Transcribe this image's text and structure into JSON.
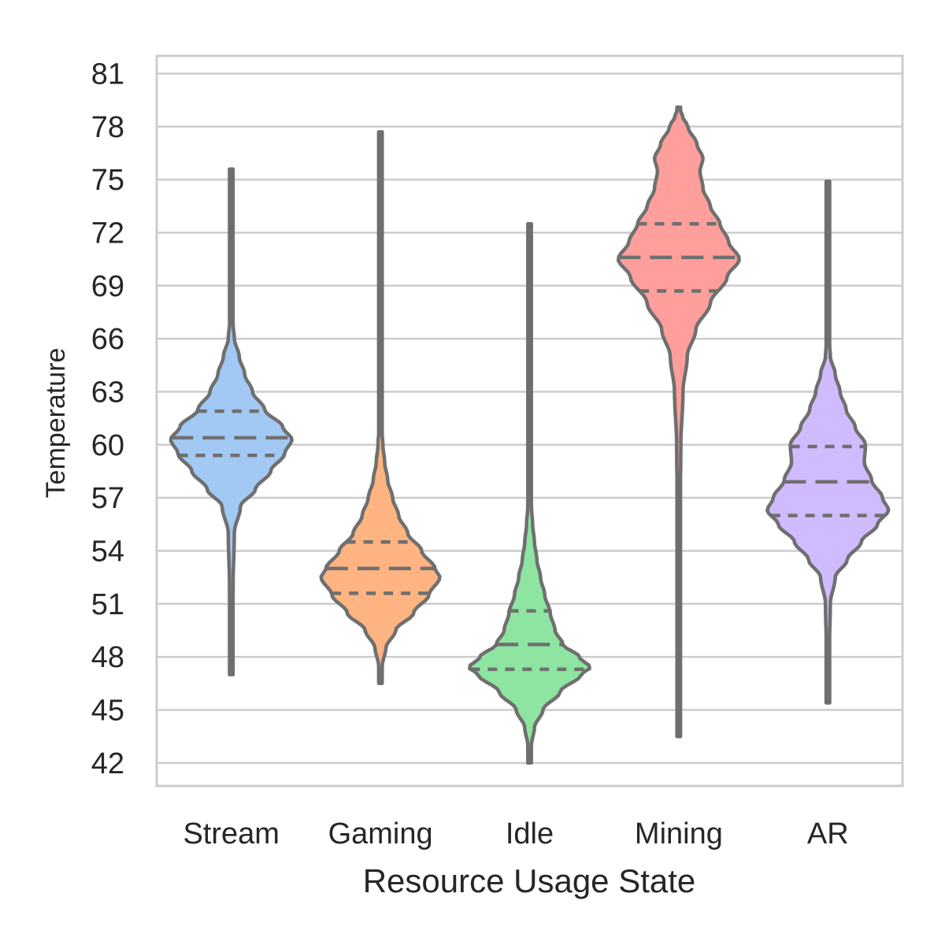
{
  "chart_data": {
    "type": "violin",
    "xlabel": "Resource Usage State",
    "ylabel": "Temperature",
    "ylim": [
      40.7,
      82
    ],
    "yticks": [
      42,
      45,
      48,
      51,
      54,
      57,
      60,
      63,
      66,
      69,
      72,
      75,
      78,
      81
    ],
    "grid": "horizontal",
    "inner": "quartile",
    "categories": [
      "Stream",
      "Gaming",
      "Idle",
      "Mining",
      "AR"
    ],
    "colors": [
      "#a1c9f4",
      "#ffb482",
      "#8de5a1",
      "#ff9f9b",
      "#d0bbff"
    ],
    "series": [
      {
        "category": "Stream",
        "min": 47.0,
        "q1": 59.4,
        "median": 60.4,
        "q3": 61.9,
        "max": 75.6,
        "density": [
          [
            47.0,
            0.01
          ],
          [
            49,
            0.02
          ],
          [
            52,
            0.03
          ],
          [
            55,
            0.05
          ],
          [
            56.5,
            0.15
          ],
          [
            57.5,
            0.4
          ],
          [
            58.5,
            0.65
          ],
          [
            59.5,
            0.88
          ],
          [
            60.3,
            1.0
          ],
          [
            61,
            0.85
          ],
          [
            62,
            0.55
          ],
          [
            63,
            0.35
          ],
          [
            64,
            0.22
          ],
          [
            65,
            0.13
          ],
          [
            66,
            0.05
          ],
          [
            67,
            0.025
          ],
          [
            69,
            0.015
          ],
          [
            72,
            0.01
          ],
          [
            75.6,
            0.01
          ]
        ]
      },
      {
        "category": "Gaming",
        "min": 46.5,
        "q1": 51.6,
        "median": 53.0,
        "q3": 54.5,
        "max": 77.7,
        "density": [
          [
            46.5,
            0.01
          ],
          [
            47.5,
            0.03
          ],
          [
            48.5,
            0.09
          ],
          [
            49.5,
            0.25
          ],
          [
            50.5,
            0.55
          ],
          [
            51.5,
            0.8
          ],
          [
            52.5,
            0.98
          ],
          [
            53,
            0.9
          ],
          [
            54,
            0.68
          ],
          [
            55,
            0.45
          ],
          [
            56,
            0.3
          ],
          [
            57,
            0.2
          ],
          [
            58,
            0.12
          ],
          [
            59,
            0.07
          ],
          [
            60,
            0.04
          ],
          [
            61,
            0.02
          ],
          [
            63,
            0.012
          ],
          [
            66,
            0.01
          ],
          [
            70,
            0.008
          ],
          [
            77.7,
            0.008
          ]
        ]
      },
      {
        "category": "Idle",
        "min": 42.0,
        "q1": 47.3,
        "median": 48.7,
        "q3": 50.6,
        "max": 72.5,
        "density": [
          [
            42.0,
            0.01
          ],
          [
            43,
            0.03
          ],
          [
            44,
            0.08
          ],
          [
            45,
            0.22
          ],
          [
            46,
            0.5
          ],
          [
            47,
            0.85
          ],
          [
            47.4,
            1.0
          ],
          [
            48,
            0.82
          ],
          [
            48.7,
            0.55
          ],
          [
            49.5,
            0.42
          ],
          [
            50.5,
            0.34
          ],
          [
            51.5,
            0.25
          ],
          [
            52.5,
            0.18
          ],
          [
            53.5,
            0.12
          ],
          [
            54.5,
            0.08
          ],
          [
            55.5,
            0.05
          ],
          [
            56.5,
            0.03
          ],
          [
            58,
            0.015
          ],
          [
            61,
            0.01
          ],
          [
            66,
            0.008
          ],
          [
            72.5,
            0.008
          ]
        ]
      },
      {
        "category": "Mining",
        "min": 43.5,
        "q1": 68.7,
        "median": 70.6,
        "q3": 72.5,
        "max": 79.1,
        "density": [
          [
            43.5,
            0.01
          ],
          [
            50,
            0.015
          ],
          [
            56,
            0.02
          ],
          [
            60,
            0.035
          ],
          [
            63,
            0.07
          ],
          [
            65,
            0.14
          ],
          [
            66.5,
            0.28
          ],
          [
            68,
            0.52
          ],
          [
            69.5,
            0.8
          ],
          [
            70.5,
            1.0
          ],
          [
            71.5,
            0.82
          ],
          [
            72.5,
            0.68
          ],
          [
            73.5,
            0.52
          ],
          [
            74.5,
            0.4
          ],
          [
            75.5,
            0.35
          ],
          [
            76.2,
            0.4
          ],
          [
            77,
            0.3
          ],
          [
            78,
            0.15
          ],
          [
            78.6,
            0.06
          ],
          [
            79.1,
            0.01
          ]
        ]
      },
      {
        "category": "AR",
        "min": 45.4,
        "q1": 56.0,
        "median": 57.9,
        "q3": 59.9,
        "max": 74.9,
        "density": [
          [
            45.4,
            0.01
          ],
          [
            48,
            0.02
          ],
          [
            51,
            0.04
          ],
          [
            52.5,
            0.12
          ],
          [
            53.5,
            0.32
          ],
          [
            54.5,
            0.55
          ],
          [
            55.5,
            0.82
          ],
          [
            56.3,
            1.0
          ],
          [
            57,
            0.9
          ],
          [
            58,
            0.72
          ],
          [
            59,
            0.6
          ],
          [
            60,
            0.62
          ],
          [
            61,
            0.45
          ],
          [
            62,
            0.3
          ],
          [
            63,
            0.2
          ],
          [
            64,
            0.12
          ],
          [
            65,
            0.04
          ],
          [
            66,
            0.02
          ],
          [
            68,
            0.015
          ],
          [
            74.9,
            0.01
          ]
        ]
      }
    ]
  }
}
